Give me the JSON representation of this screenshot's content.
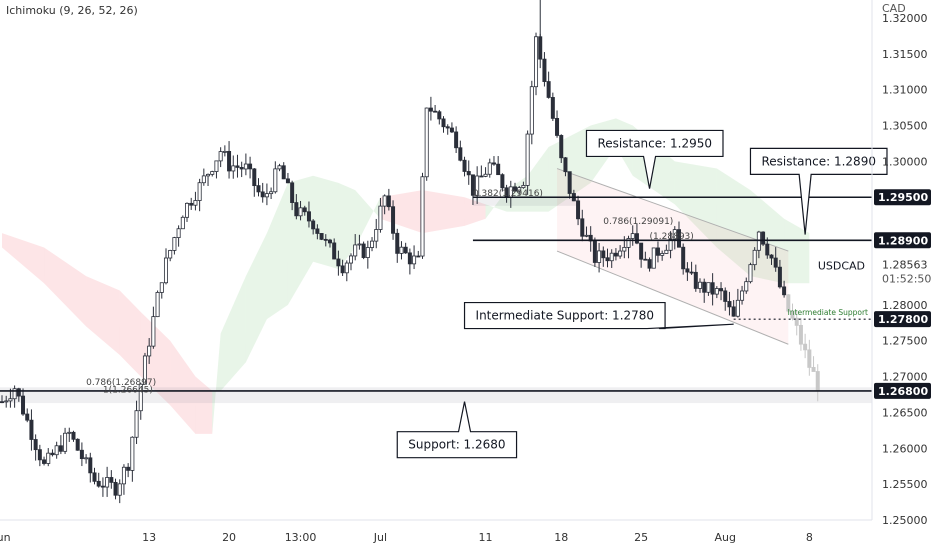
{
  "chart_data": {
    "type": "candlestick",
    "symbol": "USDCAD",
    "currency": "CAD",
    "indicator": "Ichimoku (9, 26, 52, 26)",
    "timer": "01:52:50",
    "last_price": "1.28563",
    "ylim": [
      1.25,
      1.3225
    ],
    "y_ticks": [
      {
        "value": 1.32,
        "label": "1.32000"
      },
      {
        "value": 1.315,
        "label": "1.31500"
      },
      {
        "value": 1.31,
        "label": "1.31000"
      },
      {
        "value": 1.305,
        "label": "1.30500"
      },
      {
        "value": 1.3,
        "label": "1.30000"
      },
      {
        "value": 1.28,
        "label": "1.28000"
      },
      {
        "value": 1.275,
        "label": "1.27500"
      },
      {
        "value": 1.27,
        "label": "1.27000"
      },
      {
        "value": 1.265,
        "label": "1.26500"
      },
      {
        "value": 1.26,
        "label": "1.26000"
      },
      {
        "value": 1.255,
        "label": "1.25500"
      },
      {
        "value": 1.25,
        "label": "1.25000"
      }
    ],
    "x_ticks": [
      "Jun",
      "13",
      "20",
      "13:00",
      "Jul",
      "11",
      "18",
      "25",
      "Aug",
      "8"
    ],
    "x_tick_index": [
      0,
      35,
      54,
      71,
      90,
      115,
      133,
      152,
      172,
      192
    ],
    "num_bars": 205,
    "levels": [
      {
        "value": 1.295,
        "label": "1.29500",
        "style": "solid"
      },
      {
        "value": 1.289,
        "label": "1.28900",
        "style": "solid"
      },
      {
        "value": 1.278,
        "label": "1.27800",
        "style": "dotted",
        "note": "Intermediate Support"
      },
      {
        "value": 1.268,
        "label": "1.26800",
        "style": "solid"
      }
    ],
    "callouts": [
      {
        "text": "Resistance: 1.2950",
        "box_i": 139,
        "box_p": 1.3025,
        "tip_i": 154,
        "tip_p": 1.2962
      },
      {
        "text": "Resistance: 1.2890",
        "box_i": 178,
        "box_p": 1.3,
        "tip_i": 191,
        "tip_p": 1.2898
      },
      {
        "text": "Intermediate Support: 1.2780",
        "box_i": 110,
        "box_p": 1.2785,
        "tip_i": 174,
        "tip_p": 1.2773
      },
      {
        "text": "Support: 1.2680",
        "box_i": 94,
        "box_p": 1.2605,
        "tip_i": 110,
        "tip_p": 1.2665
      }
    ],
    "fib_labels": [
      {
        "text": "0.382(1.29416)",
        "i": 112,
        "p": 1.2952
      },
      {
        "text": "0.786(1.29091)",
        "i": 143,
        "p": 1.2913
      },
      {
        "text": "(1.28893)",
        "i": 154,
        "p": 1.2892
      },
      {
        "text": "0.786(1.26897)",
        "i": 20,
        "p": 1.2688
      },
      {
        "text": "1(1.26645)",
        "i": 24,
        "p": 1.2678
      }
    ],
    "path": [
      [
        0,
        1.2665
      ],
      [
        3,
        1.2685
      ],
      [
        10,
        1.2575
      ],
      [
        16,
        1.262
      ],
      [
        22,
        1.2555
      ],
      [
        27,
        1.2545
      ],
      [
        30,
        1.258
      ],
      [
        33,
        1.269
      ],
      [
        38,
        1.284
      ],
      [
        43,
        1.293
      ],
      [
        47,
        1.2965
      ],
      [
        52,
        1.3015
      ],
      [
        54,
        1.2995
      ],
      [
        58,
        1.299
      ],
      [
        62,
        1.2945
      ],
      [
        66,
        1.299
      ],
      [
        70,
        1.293
      ],
      [
        74,
        1.2915
      ],
      [
        77,
        1.2885
      ],
      [
        81,
        1.2855
      ],
      [
        84,
        1.2875
      ],
      [
        87,
        1.2875
      ],
      [
        91,
        1.295
      ],
      [
        94,
        1.288
      ],
      [
        97,
        1.2865
      ],
      [
        99,
        1.286
      ],
      [
        101,
        1.308
      ],
      [
        104,
        1.306
      ],
      [
        108,
        1.303
      ],
      [
        112,
        1.296
      ],
      [
        116,
        1.2995
      ],
      [
        120,
        1.296
      ],
      [
        124,
        1.2975
      ],
      [
        127,
        1.317
      ],
      [
        130,
        1.309
      ],
      [
        133,
        1.3
      ],
      [
        137,
        1.292
      ],
      [
        141,
        1.2865
      ],
      [
        145,
        1.287
      ],
      [
        150,
        1.2905
      ],
      [
        153,
        1.2855
      ],
      [
        156,
        1.2875
      ],
      [
        160,
        1.2895
      ],
      [
        163,
        1.284
      ],
      [
        166,
        1.2825
      ],
      [
        171,
        1.2815
      ],
      [
        174,
        1.278
      ],
      [
        177,
        1.284
      ],
      [
        180,
        1.2905
      ],
      [
        183,
        1.2865
      ],
      [
        186,
        1.2805
      ],
      [
        189,
        1.2765
      ],
      [
        192,
        1.2715
      ],
      [
        194,
        1.269
      ]
    ],
    "cloud": [
      [
        0,
        1.288,
        1.29
      ],
      [
        10,
        1.283,
        1.288
      ],
      [
        20,
        1.277,
        1.284
      ],
      [
        28,
        1.273,
        1.282
      ],
      [
        33,
        1.27,
        1.279
      ],
      [
        40,
        1.266,
        1.275
      ],
      [
        46,
        1.262,
        1.27
      ],
      [
        50,
        1.262,
        1.268
      ],
      [
        52,
        1.276,
        1.268
      ],
      [
        58,
        1.284,
        1.272
      ],
      [
        63,
        1.29,
        1.278
      ],
      [
        68,
        1.297,
        1.28
      ],
      [
        74,
        1.298,
        1.286
      ],
      [
        80,
        1.297,
        1.285
      ],
      [
        84,
        1.296,
        1.288
      ],
      [
        90,
        1.292,
        1.295
      ],
      [
        100,
        1.29,
        1.296
      ],
      [
        110,
        1.291,
        1.295
      ],
      [
        115,
        1.292,
        1.294
      ],
      [
        120,
        1.296,
        1.293
      ],
      [
        125,
        1.298,
        1.293
      ],
      [
        130,
        1.302,
        1.293
      ],
      [
        140,
        1.305,
        1.297
      ],
      [
        146,
        1.306,
        1.302
      ],
      [
        150,
        1.305,
        1.298
      ],
      [
        160,
        1.3,
        1.294
      ],
      [
        170,
        1.299,
        1.288
      ],
      [
        178,
        1.296,
        1.284
      ],
      [
        186,
        1.292,
        1.283
      ],
      [
        192,
        1.29,
        1.283
      ]
    ],
    "channel": [
      {
        "from": [
          132,
          1.299
        ],
        "to": [
          187,
          1.2875
        ]
      },
      {
        "from": [
          132,
          1.2875
        ],
        "to": [
          187,
          1.2745
        ]
      }
    ]
  }
}
